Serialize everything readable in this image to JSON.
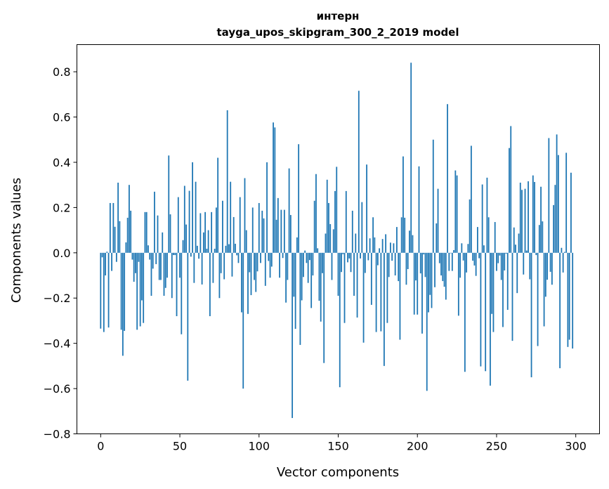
{
  "chart_data": {
    "type": "bar",
    "title": [
      "интерн",
      "tayga_upos_skipgram_300_2_2019 model"
    ],
    "xlabel": "Vector components",
    "ylabel": "Components values",
    "xlim": [
      -15,
      315
    ],
    "ylim": [
      -0.8,
      0.92
    ],
    "xticks": [
      0,
      50,
      100,
      150,
      200,
      250,
      300
    ],
    "yticks": [
      -0.8,
      -0.6,
      -0.4,
      -0.2,
      0.0,
      0.2,
      0.4,
      0.6,
      0.8
    ],
    "ytick_labels": [
      "−0.8",
      "−0.6",
      "−0.4",
      "−0.2",
      "0.0",
      "0.2",
      "0.4",
      "0.6",
      "0.8"
    ],
    "grid": false,
    "color": "#1f77b4",
    "values": [
      -0.335,
      -0.02,
      -0.35,
      -0.1,
      0.005,
      -0.33,
      0.22,
      -0.08,
      0.22,
      0.115,
      -0.04,
      0.31,
      0.14,
      -0.34,
      -0.455,
      -0.345,
      0.046,
      0.155,
      0.3,
      0.186,
      -0.03,
      -0.128,
      -0.09,
      -0.34,
      -0.04,
      -0.325,
      -0.21,
      -0.31,
      0.18,
      0.18,
      0.033,
      -0.03,
      -0.19,
      -0.07,
      0.27,
      -0.05,
      0.165,
      -0.12,
      -0.12,
      0.09,
      -0.19,
      -0.155,
      -0.11,
      0.43,
      0.17,
      -0.2,
      -0.01,
      -0.01,
      -0.28,
      0.246,
      -0.11,
      -0.36,
      0.056,
      0.296,
      0.125,
      -0.565,
      0.274,
      -0.017,
      0.4,
      -0.133,
      0.314,
      0.031,
      -0.026,
      0.175,
      -0.14,
      0.09,
      0.18,
      0.018,
      0.1,
      -0.28,
      0.18,
      -0.133,
      0.018,
      0.2,
      0.42,
      -0.2,
      -0.09,
      0.23,
      -0.117,
      0.031,
      0.63,
      0.038,
      0.314,
      -0.105,
      0.158,
      0.04,
      -0.011,
      -0.045,
      0.246,
      -0.263,
      -0.6,
      0.33,
      0.1,
      -0.27,
      -0.086,
      -0.187,
      0.2,
      -0.12,
      -0.173,
      -0.082,
      0.22,
      -0.045,
      0.186,
      0.152,
      -0.146,
      0.4,
      -0.036,
      -0.11,
      -0.061,
      0.576,
      0.554,
      0.146,
      0.242,
      -0.11,
      0.19,
      -0.023,
      0.19,
      -0.22,
      -0.12,
      0.373,
      0.167,
      -0.73,
      -0.194,
      -0.336,
      0.068,
      0.48,
      -0.407,
      -0.21,
      -0.107,
      0.01,
      -0.045,
      -0.133,
      -0.032,
      -0.244,
      -0.1,
      0.23,
      0.348,
      0.02,
      -0.212,
      -0.304,
      -0.09,
      -0.487,
      0.085,
      0.323,
      0.22,
      0.127,
      -0.12,
      0.104,
      0.273,
      0.38,
      -0.19,
      -0.594,
      -0.085,
      -0.006,
      -0.31,
      0.273,
      -0.042,
      -0.025,
      -0.085,
      0.186,
      -0.19,
      0.085,
      -0.286,
      0.716,
      -0.025,
      0.224,
      -0.397,
      -0.089,
      0.39,
      -0.033,
      0.064,
      -0.23,
      0.157,
      0.068,
      -0.35,
      -0.055,
      0.02,
      -0.347,
      0.061,
      -0.5,
      0.082,
      -0.31,
      -0.107,
      0.045,
      -0.035,
      0.042,
      -0.1,
      0.114,
      -0.125,
      -0.384,
      0.157,
      0.426,
      0.155,
      -0.141,
      -0.072,
      0.098,
      0.84,
      0.078,
      -0.273,
      -0.122,
      -0.273,
      0.382,
      -0.091,
      -0.357,
      -0.007,
      -0.107,
      -0.61,
      -0.263,
      -0.186,
      -0.244,
      0.5,
      -0.152,
      0.13,
      0.283,
      -0.046,
      -0.1,
      -0.125,
      -0.15,
      -0.207,
      0.657,
      -0.08,
      -0.002,
      -0.08,
      0.012,
      0.364,
      0.342,
      -0.278,
      -0.11,
      0.042,
      -0.034,
      -0.526,
      -0.087,
      0.039,
      0.236,
      0.473,
      -0.035,
      -0.056,
      -0.102,
      0.114,
      -0.024,
      -0.502,
      0.302,
      0.033,
      -0.523,
      0.332,
      0.157,
      -0.587,
      -0.27,
      -0.35,
      0.136,
      -0.08,
      -0.046,
      -0.012,
      -0.12,
      -0.328,
      -0.078,
      -0.004,
      -0.252,
      0.463,
      0.56,
      -0.389,
      0.112,
      0.036,
      -0.178,
      0.085,
      0.31,
      0.278,
      -0.096,
      0.283,
      0.01,
      0.316,
      -0.117,
      -0.55,
      0.342,
      0.313,
      -0.01,
      -0.412,
      0.123,
      0.292,
      0.139,
      -0.325,
      -0.194,
      -0.119,
      0.507,
      -0.084,
      -0.141,
      0.211,
      0.3,
      0.523,
      0.432,
      -0.51,
      0.022,
      -0.087,
      0.004,
      0.442,
      -0.416,
      -0.384,
      0.354,
      -0.423
    ]
  }
}
